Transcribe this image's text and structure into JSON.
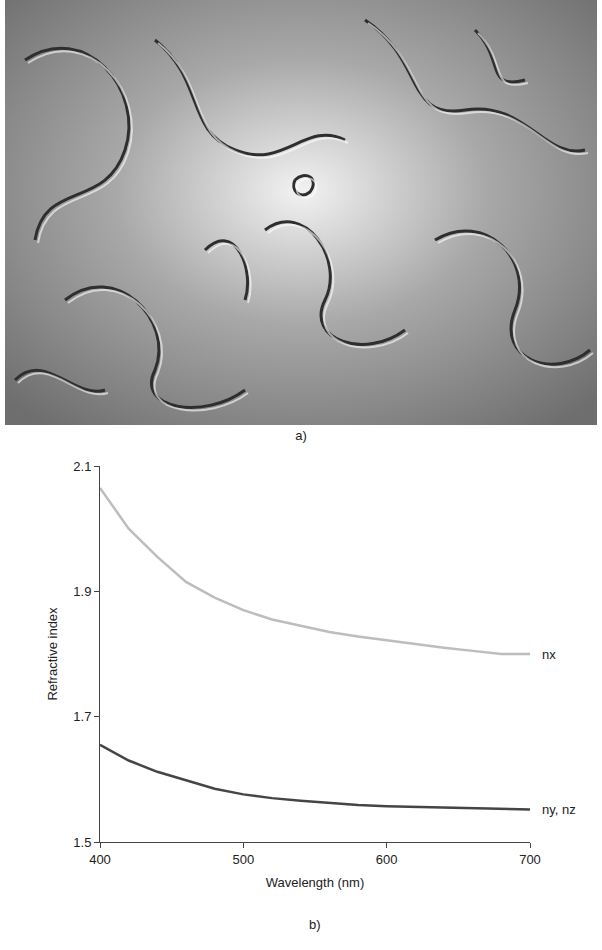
{
  "panel_labels": [
    "a)",
    "b)"
  ],
  "chart_data": {
    "type": "line",
    "xlabel": "Wavelength (nm)",
    "ylabel": "Refractive index",
    "x": [
      400,
      420,
      440,
      460,
      480,
      500,
      520,
      540,
      560,
      580,
      600,
      620,
      640,
      660,
      680,
      700
    ],
    "series": [
      {
        "name": "nx",
        "color": "#bdbdbd",
        "values": [
          2.065,
          2.0,
          1.955,
          1.915,
          1.89,
          1.87,
          1.855,
          1.845,
          1.835,
          1.828,
          1.822,
          1.815,
          1.81,
          1.805,
          1.8,
          1.8
        ]
      },
      {
        "name": "ny, nz",
        "color": "#454545",
        "values": [
          1.655,
          1.63,
          1.612,
          1.598,
          1.585,
          1.576,
          1.57,
          1.566,
          1.562,
          1.559,
          1.557,
          1.556,
          1.554,
          1.553,
          1.552,
          1.552
        ]
      }
    ],
    "xlim": [
      400,
      700
    ],
    "ylim": [
      1.5,
      2.1
    ],
    "xticks": [
      400,
      500,
      600,
      700
    ],
    "yticks": [
      1.5,
      1.7,
      1.9,
      2.1
    ],
    "grid": false
  }
}
